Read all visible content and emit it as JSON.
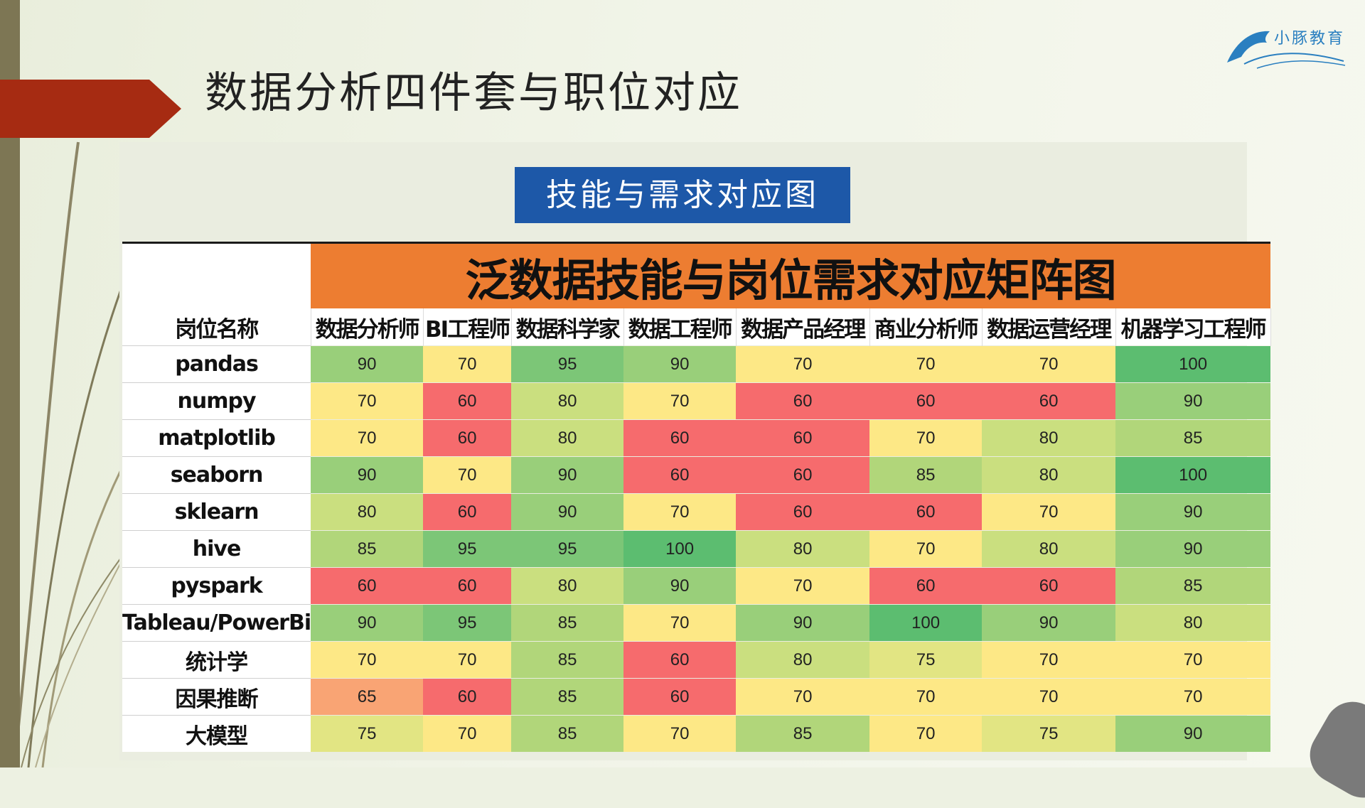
{
  "slide": {
    "title": "数据分析四件套与职位对应",
    "logo_text": "小豚教育",
    "subtitle": "技能与需求对应图"
  },
  "matrix": {
    "banner": "泛数据技能与岗位需求对应矩阵图",
    "corner_header": "岗位名称",
    "columns": [
      "数据分析师",
      "BI工程师",
      "数据科学家",
      "数据工程师",
      "数据产品经理",
      "商业分析师",
      "数据运营经理",
      "机器学习工程师"
    ],
    "rows": [
      {
        "label": "pandas",
        "values": [
          90,
          70,
          95,
          90,
          70,
          70,
          70,
          100
        ]
      },
      {
        "label": "numpy",
        "values": [
          70,
          60,
          80,
          70,
          60,
          60,
          60,
          90
        ]
      },
      {
        "label": "matplotlib",
        "values": [
          70,
          60,
          80,
          60,
          60,
          70,
          80,
          85
        ]
      },
      {
        "label": "seaborn",
        "values": [
          90,
          70,
          90,
          60,
          60,
          85,
          80,
          100
        ]
      },
      {
        "label": "sklearn",
        "values": [
          80,
          60,
          90,
          70,
          60,
          60,
          70,
          90
        ]
      },
      {
        "label": "hive",
        "values": [
          85,
          95,
          95,
          100,
          80,
          70,
          80,
          90
        ]
      },
      {
        "label": "pyspark",
        "values": [
          60,
          60,
          80,
          90,
          70,
          60,
          60,
          85
        ]
      },
      {
        "label": "Tableau/PowerBi",
        "values": [
          90,
          95,
          85,
          70,
          90,
          100,
          90,
          80
        ]
      },
      {
        "label": "统计学",
        "values": [
          70,
          70,
          85,
          60,
          80,
          75,
          70,
          70
        ]
      },
      {
        "label": "因果推断",
        "values": [
          65,
          60,
          85,
          60,
          70,
          70,
          70,
          70
        ]
      },
      {
        "label": "大模型",
        "values": [
          75,
          70,
          85,
          70,
          85,
          70,
          75,
          90
        ]
      }
    ]
  },
  "colors": {
    "arrow": "#a62b12",
    "subtitle_bg": "#1d58a8",
    "banner_bg": "#ed7d31",
    "heat_high": "#5cbd70",
    "heat_mid": "#fde886",
    "heat_low": "#f66b6d"
  }
}
